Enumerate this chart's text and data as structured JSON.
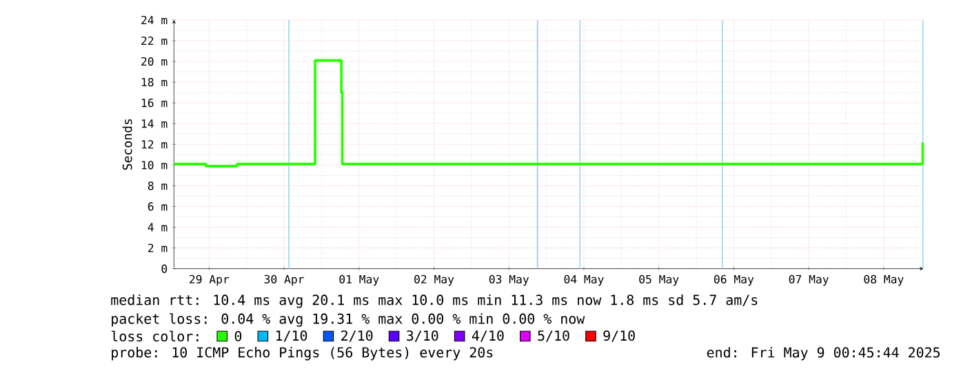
{
  "chart_data": {
    "type": "step",
    "ylabel": "Seconds",
    "xlim": [
      "2025-04-29T00:45",
      "2025-05-09T00:45"
    ],
    "xticks": [
      {
        "value": "2025-04-29T12:00",
        "label": "29 Apr"
      },
      {
        "value": "2025-04-30T12:00",
        "label": "30 Apr"
      },
      {
        "value": "2025-05-01T12:00",
        "label": "01 May"
      },
      {
        "value": "2025-05-02T12:00",
        "label": "02 May"
      },
      {
        "value": "2025-05-03T12:00",
        "label": "03 May"
      },
      {
        "value": "2025-05-04T12:00",
        "label": "04 May"
      },
      {
        "value": "2025-05-05T12:00",
        "label": "05 May"
      },
      {
        "value": "2025-05-06T12:00",
        "label": "06 May"
      },
      {
        "value": "2025-05-07T12:00",
        "label": "07 May"
      },
      {
        "value": "2025-05-08T12:00",
        "label": "08 May"
      }
    ],
    "ylim": [
      0,
      24
    ],
    "yticks": [
      0,
      {
        "value": 2,
        "label": "2 m"
      },
      {
        "value": 4,
        "label": "4 m"
      },
      {
        "value": 6,
        "label": "6 m"
      },
      {
        "value": 8,
        "label": "8 m"
      },
      {
        "value": 10,
        "label": "10 m"
      },
      {
        "value": 12,
        "label": "12 m"
      },
      {
        "value": 14,
        "label": "14 m"
      },
      {
        "value": 16,
        "label": "16 m"
      },
      {
        "value": 18,
        "label": "18 m"
      },
      {
        "value": 20,
        "label": "20 m"
      },
      {
        "value": 22,
        "label": "22 m"
      },
      {
        "value": 24,
        "label": "24 m"
      }
    ],
    "x": [
      "2025-04-29T00:45",
      "2025-04-29T11:00",
      "2025-04-29T21:00",
      "2025-04-30T21:57",
      "2025-05-01T06:21",
      "2025-05-01T06:40",
      "2025-05-09T00:30",
      "2025-05-09T00:45"
    ],
    "series": [
      {
        "name": "0",
        "color": "#26ff00",
        "values": [
          10.1,
          9.9,
          10.1,
          20.1,
          17.0,
          10.1,
          12.1,
          12.1
        ]
      },
      {
        "name": "1/10",
        "color": "#00b8ff",
        "values": [
          null,
          null,
          null,
          null,
          null,
          null,
          null,
          null
        ]
      },
      {
        "name": "2/10",
        "color": "#0059ff",
        "values": [
          null,
          null,
          null,
          null,
          null,
          null,
          null,
          null
        ]
      },
      {
        "name": "3/10",
        "color": "#5e00ff",
        "values": [
          null,
          null,
          null,
          null,
          null,
          null,
          null,
          null
        ]
      },
      {
        "name": "4/10",
        "color": "#7e00ff",
        "values": [
          null,
          null,
          null,
          null,
          null,
          null,
          null,
          null
        ]
      },
      {
        "name": "5/10",
        "color": "#dd00ff",
        "values": [
          null,
          null,
          null,
          null,
          null,
          null,
          null,
          null
        ]
      },
      {
        "name": "9/10",
        "color": "#ff0000",
        "values": [
          null,
          null,
          null,
          null,
          null,
          null,
          null,
          null
        ]
      }
    ],
    "ref_lines": [
      {
        "axis": "x",
        "value": "2025-04-30T13:33",
        "color": "#a0dcf5"
      },
      {
        "axis": "x",
        "value": "2025-05-03T21:09",
        "color": "#a0c8f5"
      },
      {
        "axis": "x",
        "value": "2025-05-04T10:45",
        "color": "#a0dcf5"
      },
      {
        "axis": "x",
        "value": "2025-05-06T08:21",
        "color": "#a0dcf5"
      },
      {
        "axis": "x",
        "value": "2025-05-09T00:33",
        "color": "#a0dcf5"
      }
    ],
    "grid": true,
    "legend": "bottom",
    "annotations": [
      "median rtt:  10.4 ms avg  20.1 ms max  10.0 ms min  11.3 ms now  1.8 ms sd  5.7   am/s",
      "packet loss: 0.04 % avg  19.31 % max  0.00 % min  0.00 % now",
      "loss color:",
      "probe:       10 ICMP Echo Pings (56 Bytes) every 20s",
      "end: Fri May  9 00:45:44 2025"
    ]
  }
}
